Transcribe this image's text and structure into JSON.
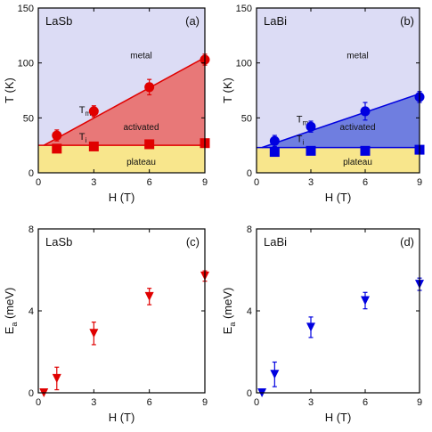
{
  "chart_data": [
    {
      "panel": "a",
      "type": "scatter",
      "material": "LaSb",
      "panel_label": "(a)",
      "xlabel": "H (T)",
      "ylabel": "T (K)",
      "xlim": [
        0,
        9
      ],
      "ylim": [
        0,
        150
      ],
      "xticks": [
        0,
        3,
        6,
        9
      ],
      "yticks": [
        0,
        50,
        100,
        150
      ],
      "colors": {
        "metal": "#dcdcf5",
        "activated": "#e87878",
        "plateau": "#f8e68c",
        "series": "#e00000"
      },
      "regions": {
        "metal": "metal",
        "activated": "activated",
        "plateau": "plateau"
      },
      "boundary_Tm": {
        "x": [
          0.3,
          9
        ],
        "y": [
          25,
          105
        ]
      },
      "boundary_Ti": {
        "x": [
          0,
          9
        ],
        "y": [
          25,
          25
        ]
      },
      "series": [
        {
          "name": "Tm",
          "marker": "circle",
          "x": [
            1,
            3,
            6,
            9
          ],
          "y": [
            34,
            56,
            78,
            103
          ],
          "err": [
            5,
            5,
            7,
            5
          ]
        },
        {
          "name": "Ti",
          "marker": "square",
          "x": [
            1,
            3,
            6,
            9
          ],
          "y": [
            22,
            24,
            26,
            27
          ]
        }
      ],
      "series_labels": [
        {
          "main": "T",
          "sub": "m"
        },
        {
          "main": "T",
          "sub": "i"
        }
      ]
    },
    {
      "panel": "b",
      "type": "scatter",
      "material": "LaBi",
      "panel_label": "(b)",
      "xlabel": "H (T)",
      "ylabel": "T (K)",
      "xlim": [
        0,
        9
      ],
      "ylim": [
        0,
        150
      ],
      "xticks": [
        0,
        3,
        6,
        9
      ],
      "yticks": [
        0,
        50,
        100,
        150
      ],
      "colors": {
        "metal": "#dcdcf5",
        "activated": "#6f7ee0",
        "plateau": "#f8e68c",
        "series": "#0000e0"
      },
      "regions": {
        "metal": "metal",
        "activated": "activated",
        "plateau": "plateau"
      },
      "boundary_Tm": {
        "x": [
          0.3,
          9
        ],
        "y": [
          23,
          72
        ]
      },
      "boundary_Ti": {
        "x": [
          0,
          9
        ],
        "y": [
          23,
          23
        ]
      },
      "series": [
        {
          "name": "Tm",
          "marker": "circle",
          "x": [
            1,
            3,
            6,
            9
          ],
          "y": [
            29,
            42,
            56,
            69
          ],
          "err": [
            5,
            5,
            8,
            5
          ]
        },
        {
          "name": "Ti",
          "marker": "square",
          "x": [
            1,
            3,
            6,
            9
          ],
          "y": [
            19,
            20,
            20,
            21
          ]
        }
      ],
      "series_labels": [
        {
          "main": "T",
          "sub": "m"
        },
        {
          "main": "T",
          "sub": "i"
        }
      ]
    },
    {
      "panel": "c",
      "type": "scatter",
      "material": "LaSb",
      "panel_label": "(c)",
      "xlabel": "H (T)",
      "ylabel": "E",
      "ylabel_sub": "a",
      "ylabel_unit": " (meV)",
      "xlim": [
        0,
        9
      ],
      "ylim": [
        0,
        8
      ],
      "xticks": [
        0,
        3,
        6,
        9
      ],
      "yticks": [
        0,
        4,
        8
      ],
      "colors": {
        "series": "#e00000"
      },
      "series": [
        {
          "name": "Ea",
          "marker": "triangle-down",
          "x": [
            0.3,
            1,
            3,
            6,
            9
          ],
          "y": [
            0,
            0.7,
            2.9,
            4.7,
            5.7
          ],
          "err": [
            0,
            0.55,
            0.55,
            0.4,
            0.25
          ]
        }
      ]
    },
    {
      "panel": "d",
      "type": "scatter",
      "material": "LaBi",
      "panel_label": "(d)",
      "xlabel": "H (T)",
      "ylabel": "E",
      "ylabel_sub": "a",
      "ylabel_unit": " (meV)",
      "xlim": [
        0,
        9
      ],
      "ylim": [
        0,
        8
      ],
      "xticks": [
        0,
        3,
        6,
        9
      ],
      "yticks": [
        0,
        4,
        8
      ],
      "colors": {
        "series": "#0000e0"
      },
      "series": [
        {
          "name": "Ea",
          "marker": "triangle-down",
          "x": [
            0.3,
            1,
            3,
            6,
            9
          ],
          "y": [
            0,
            0.9,
            3.2,
            4.5,
            5.3
          ],
          "err": [
            0,
            0.6,
            0.5,
            0.4,
            0.3
          ]
        }
      ]
    }
  ]
}
